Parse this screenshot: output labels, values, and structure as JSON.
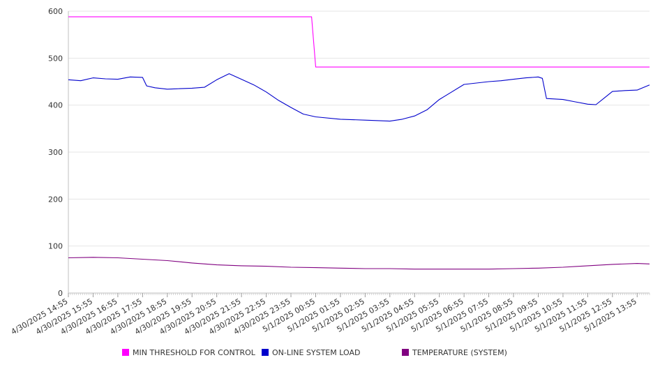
{
  "chart_data": {
    "type": "line",
    "title": "",
    "xlabel": "",
    "ylabel": "",
    "ylim": [
      0,
      600
    ],
    "yticks": [
      0,
      100,
      200,
      300,
      400,
      500,
      600
    ],
    "grid": true,
    "legend_position": "bottom",
    "x_start": "4/30/2025 14:55",
    "x_end": "5/1/2025 14:25",
    "x_tick_labels": [
      "4/30/2025 14:55",
      "4/30/2025 15:55",
      "4/30/2025 16:55",
      "4/30/2025 17:55",
      "4/30/2025 18:55",
      "4/30/2025 19:55",
      "4/30/2025 20:55",
      "4/30/2025 21:55",
      "4/30/2025 22:55",
      "4/30/2025 23:55",
      "5/1/2025 00:55",
      "5/1/2025 01:55",
      "5/1/2025 02:55",
      "5/1/2025 03:55",
      "5/1/2025 04:55",
      "5/1/2025 05:55",
      "5/1/2025 06:55",
      "5/1/2025 07:55",
      "5/1/2025 08:55",
      "5/1/2025 09:55",
      "5/1/2025 10:55",
      "5/1/2025 11:55",
      "5/1/2025 12:55",
      "5/1/2025 13:55"
    ],
    "series": [
      {
        "name": "MIN THRESHOLD FOR CONTROL",
        "color": "#ff00ff",
        "points": [
          [
            "4/30/2025 14:55",
            588
          ],
          [
            "5/1/2025 00:45",
            588
          ],
          [
            "5/1/2025 00:55",
            481
          ],
          [
            "5/1/2025 14:25",
            481
          ]
        ]
      },
      {
        "name": "ON-LINE SYSTEM LOAD",
        "color": "#0000cc",
        "points": [
          [
            "4/30/2025 14:55",
            454
          ],
          [
            "4/30/2025 15:25",
            452
          ],
          [
            "4/30/2025 15:55",
            458
          ],
          [
            "4/30/2025 16:25",
            456
          ],
          [
            "4/30/2025 16:55",
            455
          ],
          [
            "4/30/2025 17:25",
            460
          ],
          [
            "4/30/2025 17:55",
            459
          ],
          [
            "4/30/2025 18:05",
            441
          ],
          [
            "4/30/2025 18:25",
            437
          ],
          [
            "4/30/2025 18:55",
            434
          ],
          [
            "4/30/2025 19:25",
            435
          ],
          [
            "4/30/2025 19:55",
            436
          ],
          [
            "4/30/2025 20:25",
            438
          ],
          [
            "4/30/2025 20:55",
            454
          ],
          [
            "4/30/2025 21:25",
            467
          ],
          [
            "4/30/2025 21:55",
            455
          ],
          [
            "4/30/2025 22:25",
            443
          ],
          [
            "4/30/2025 22:55",
            428
          ],
          [
            "4/30/2025 23:25",
            410
          ],
          [
            "4/30/2025 23:55",
            395
          ],
          [
            "5/1/2025 00:25",
            381
          ],
          [
            "5/1/2025 00:55",
            375
          ],
          [
            "5/1/2025 01:55",
            370
          ],
          [
            "5/1/2025 02:55",
            368
          ],
          [
            "5/1/2025 03:55",
            366
          ],
          [
            "5/1/2025 04:25",
            370
          ],
          [
            "5/1/2025 04:55",
            377
          ],
          [
            "5/1/2025 05:25",
            390
          ],
          [
            "5/1/2025 05:55",
            412
          ],
          [
            "5/1/2025 06:25",
            428
          ],
          [
            "5/1/2025 06:55",
            444
          ],
          [
            "5/1/2025 07:25",
            447
          ],
          [
            "5/1/2025 07:55",
            450
          ],
          [
            "5/1/2025 08:25",
            452
          ],
          [
            "5/1/2025 08:55",
            455
          ],
          [
            "5/1/2025 09:25",
            458
          ],
          [
            "5/1/2025 09:55",
            460
          ],
          [
            "5/1/2025 10:05",
            457
          ],
          [
            "5/1/2025 10:15",
            414
          ],
          [
            "5/1/2025 10:55",
            412
          ],
          [
            "5/1/2025 11:25",
            407
          ],
          [
            "5/1/2025 11:55",
            402
          ],
          [
            "5/1/2025 12:15",
            401
          ],
          [
            "5/1/2025 12:35",
            415
          ],
          [
            "5/1/2025 12:55",
            429
          ],
          [
            "5/1/2025 13:25",
            431
          ],
          [
            "5/1/2025 13:55",
            432
          ],
          [
            "5/1/2025 14:25",
            443
          ]
        ]
      },
      {
        "name": "TEMPERATURE (SYSTEM)",
        "color": "#800080",
        "points": [
          [
            "4/30/2025 14:55",
            75
          ],
          [
            "4/30/2025 15:55",
            76
          ],
          [
            "4/30/2025 16:55",
            75
          ],
          [
            "4/30/2025 17:55",
            72
          ],
          [
            "4/30/2025 18:55",
            69
          ],
          [
            "4/30/2025 19:55",
            64
          ],
          [
            "4/30/2025 20:55",
            60
          ],
          [
            "4/30/2025 21:55",
            58
          ],
          [
            "4/30/2025 22:55",
            57
          ],
          [
            "4/30/2025 23:55",
            55
          ],
          [
            "5/1/2025 00:55",
            54
          ],
          [
            "5/1/2025 01:55",
            53
          ],
          [
            "5/1/2025 02:55",
            52
          ],
          [
            "5/1/2025 03:55",
            52
          ],
          [
            "5/1/2025 04:55",
            51
          ],
          [
            "5/1/2025 05:55",
            51
          ],
          [
            "5/1/2025 06:55",
            51
          ],
          [
            "5/1/2025 07:55",
            51
          ],
          [
            "5/1/2025 08:55",
            52
          ],
          [
            "5/1/2025 09:55",
            53
          ],
          [
            "5/1/2025 10:55",
            55
          ],
          [
            "5/1/2025 11:55",
            58
          ],
          [
            "5/1/2025 12:55",
            61
          ],
          [
            "5/1/2025 13:55",
            63
          ],
          [
            "5/1/2025 14:25",
            62
          ]
        ]
      }
    ]
  }
}
